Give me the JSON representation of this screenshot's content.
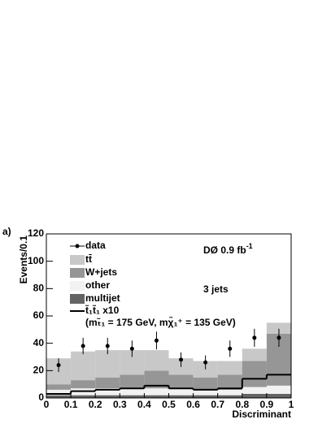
{
  "chart_data": {
    "type": "histogram",
    "stacked": true,
    "panel_label": "a)",
    "ylabel": "Events/0.1",
    "xlabel": "Discriminant",
    "experiment": {
      "text": "DØ 0.9 fb",
      "sup": "-1"
    },
    "annotation": "3 jets",
    "bins": [
      0,
      0.1,
      0.2,
      0.3,
      0.4,
      0.5,
      0.6,
      0.7,
      0.8,
      0.9,
      1
    ],
    "series": [
      {
        "name": "multijet",
        "color": "#646464",
        "values": [
          2,
          2,
          2,
          2,
          2,
          2,
          2,
          2,
          3,
          3
        ]
      },
      {
        "name": "other",
        "color": "#f2f2f2",
        "values": [
          4,
          5,
          5,
          5,
          5,
          5,
          4,
          4,
          5,
          6
        ]
      },
      {
        "name": "W+jets",
        "color": "#969696",
        "values": [
          4,
          6,
          8,
          10,
          13,
          10,
          9,
          11,
          19,
          38
        ]
      },
      {
        "name": "tt̄",
        "color": "#c8c8c8",
        "values": [
          19,
          21,
          20,
          18,
          15,
          12,
          12,
          10,
          9,
          8
        ]
      }
    ],
    "signal": {
      "name": "t̃₁t̃₁ x10",
      "detail": "(mₜ̃₁ = 175 GeV, mχ̃₁⁺ = 135 GeV)",
      "color": "#000000",
      "values": [
        3,
        5,
        6,
        7,
        9,
        7,
        6,
        7,
        14,
        17
      ]
    },
    "data": {
      "name": "data",
      "color": "#000000",
      "values": [
        24,
        38,
        38,
        36,
        42,
        28,
        26,
        36,
        44,
        44
      ],
      "errors": [
        5,
        6,
        6,
        6,
        6.5,
        5.3,
        5.1,
        6,
        6.6,
        6.6
      ]
    },
    "xlim": [
      0,
      1
    ],
    "ylim": [
      0,
      120
    ],
    "xticks": [
      0,
      0.1,
      0.2,
      0.3,
      0.4,
      0.5,
      0.6,
      0.7,
      0.8,
      0.9,
      1
    ],
    "yticks": [
      0,
      20,
      40,
      60,
      80,
      100,
      120
    ]
  }
}
